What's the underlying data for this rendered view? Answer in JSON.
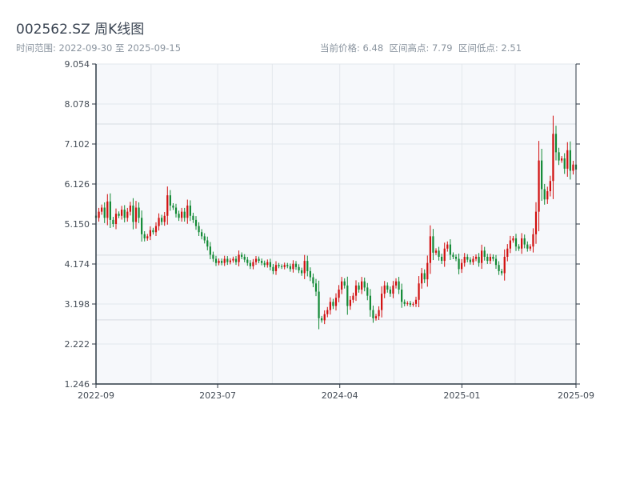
{
  "header": {
    "title": "002562.SZ 周K线图",
    "range_label": "时间范围: 2022-09-30 至 2025-09-15",
    "price_label": "当前价格: 6.48",
    "high_label": "区间高点: 7.79",
    "low_label": "区间低点: 2.51"
  },
  "colors": {
    "up": "#d10f0f",
    "down": "#138a36",
    "plot_bg": "#f6f8fb",
    "grid": "#e3e7ec",
    "axis": "#2e3a46"
  },
  "chart_data": {
    "type": "candlestick",
    "ylim": [
      1.246,
      9.054
    ],
    "y_ticks": [
      "1.246",
      "2.222",
      "3.198",
      "4.174",
      "5.150",
      "6.126",
      "7.102",
      "8.078",
      "9.054"
    ],
    "x_ticks": [
      "2022-09",
      "2023-07",
      "2024-04",
      "2025-01",
      "2025-09"
    ],
    "x_range": [
      "2022-09-30",
      "2025-09-15"
    ],
    "reference_lines": [
      2.81,
      4.39,
      7.59
    ],
    "weekly_closes": [
      5.3,
      5.45,
      5.55,
      5.3,
      5.7,
      5.25,
      5.15,
      5.4,
      5.35,
      5.5,
      5.3,
      5.45,
      5.6,
      5.2,
      5.55,
      5.3,
      4.9,
      4.8,
      4.85,
      5.0,
      4.95,
      5.1,
      5.3,
      5.2,
      5.35,
      5.85,
      5.6,
      5.55,
      5.4,
      5.3,
      5.45,
      5.3,
      5.6,
      5.35,
      5.25,
      5.1,
      4.95,
      4.85,
      4.75,
      4.6,
      4.4,
      4.3,
      4.2,
      4.25,
      4.2,
      4.3,
      4.22,
      4.26,
      4.3,
      4.22,
      4.4,
      4.35,
      4.28,
      4.2,
      4.12,
      4.22,
      4.3,
      4.25,
      4.2,
      4.15,
      4.22,
      4.1,
      4.0,
      4.15,
      4.12,
      4.1,
      4.15,
      4.12,
      4.05,
      4.18,
      4.1,
      4.02,
      3.95,
      4.25,
      4.0,
      3.85,
      3.7,
      3.5,
      2.85,
      2.8,
      2.95,
      3.05,
      3.25,
      3.15,
      3.35,
      3.55,
      3.75,
      3.65,
      3.15,
      3.3,
      3.4,
      3.65,
      3.55,
      3.75,
      3.6,
      3.4,
      3.05,
      2.85,
      2.9,
      3.05,
      3.45,
      3.65,
      3.55,
      3.45,
      3.65,
      3.75,
      3.55,
      3.25,
      3.2,
      3.22,
      3.18,
      3.2,
      3.3,
      3.7,
      3.95,
      3.8,
      4.2,
      4.85,
      4.45,
      4.5,
      4.35,
      4.25,
      4.55,
      4.65,
      4.4,
      4.35,
      4.3,
      4.05,
      4.2,
      4.35,
      4.28,
      4.22,
      4.3,
      4.35,
      4.2,
      4.5,
      4.35,
      4.25,
      4.35,
      4.3,
      4.15,
      4.0,
      3.95,
      4.35,
      4.55,
      4.75,
      4.8,
      4.6,
      4.55,
      4.8,
      4.65,
      4.55,
      4.6,
      4.9,
      5.45,
      6.7,
      6.0,
      5.75,
      5.95,
      6.2,
      7.35,
      6.9,
      6.7,
      6.75,
      6.5,
      6.95,
      6.45,
      6.6,
      6.48
    ]
  }
}
